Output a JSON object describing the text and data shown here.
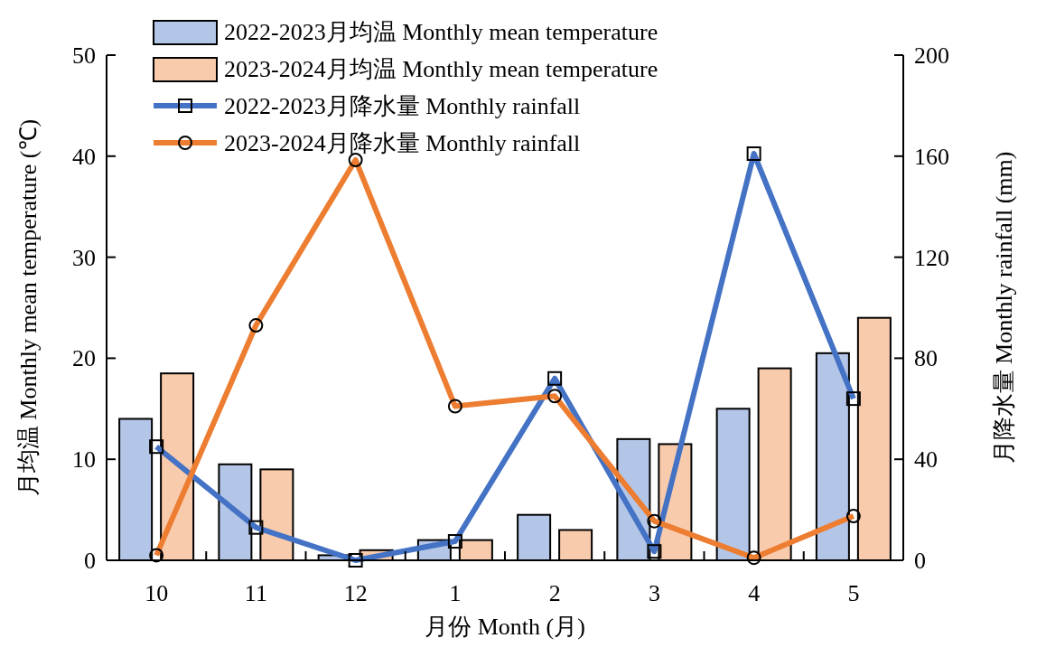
{
  "chart_data": {
    "type": "bar",
    "xlabel": "月份 Month (月)",
    "ylabel": "月均温 Monthly mean temperature (℃)",
    "y2label": "月降水量 Monthly rainfall (mm)",
    "categories": [
      "10",
      "11",
      "12",
      "1",
      "2",
      "3",
      "4",
      "5"
    ],
    "series": [
      {
        "name": "2022-2023月均温 Monthly mean temperature",
        "color": "#b4c6e7",
        "values": [
          14,
          9.5,
          0.5,
          2,
          4.5,
          12,
          15,
          20.5
        ]
      },
      {
        "name": "2023-2024月均温 Monthly mean temperature",
        "color": "#f8cbad",
        "values": [
          18.5,
          9,
          1,
          2,
          3,
          11.5,
          19,
          24
        ]
      },
      {
        "name": "2022-2023月降水量 Monthly rainfall",
        "type": "line",
        "axis": "y2",
        "marker": "square",
        "color": "#4472c4",
        "values": [
          45,
          13,
          0,
          7.5,
          72,
          3.5,
          161,
          64
        ]
      },
      {
        "name": "2023-2024月降水量 Monthly rainfall",
        "type": "line",
        "axis": "y2",
        "marker": "circle",
        "color": "#ed7d31",
        "values": [
          2,
          93,
          158.5,
          61,
          65,
          15.5,
          1,
          17.5
        ]
      }
    ],
    "ylim": [
      0,
      50
    ],
    "yticks": [
      0,
      10,
      20,
      30,
      40,
      50
    ],
    "y2lim": [
      0,
      200
    ],
    "y2ticks": [
      0,
      40,
      80,
      120,
      160,
      200
    ],
    "grid": false,
    "legend": "top"
  }
}
